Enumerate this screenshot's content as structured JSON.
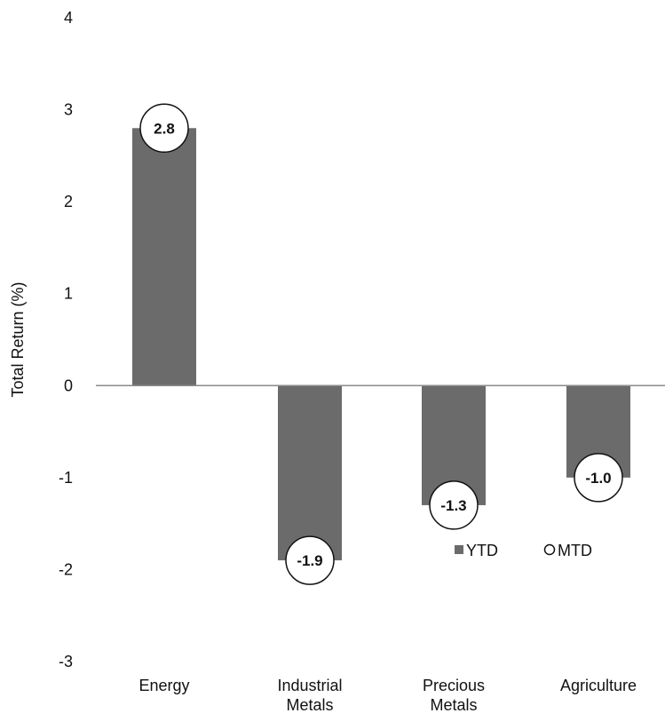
{
  "chart_data": {
    "type": "bar",
    "ylabel": "Total Return (%)",
    "ylim": [
      -3,
      4
    ],
    "yticks": [
      "4",
      "3",
      "2",
      "1",
      "0",
      "-1",
      "-2",
      "-3"
    ],
    "grid": false,
    "categories": [
      [
        "Energy"
      ],
      [
        "Industrial",
        "Metals"
      ],
      [
        "Precious",
        "Metals"
      ],
      [
        "Agriculture"
      ]
    ],
    "series": [
      {
        "name": "YTD",
        "values": [
          2.8,
          -1.9,
          -1.3,
          -1.0
        ],
        "color": "#6b6b6b"
      },
      {
        "name": "MTD",
        "values": [
          2.8,
          -1.9,
          -1.3,
          -1.0
        ],
        "color": "#ffffff"
      }
    ],
    "data_labels": [
      "2.8",
      "-1.9",
      "-1.3",
      "-1.0"
    ],
    "legend": {
      "position": "inside-right",
      "items": [
        "YTD",
        "MTD"
      ]
    }
  }
}
